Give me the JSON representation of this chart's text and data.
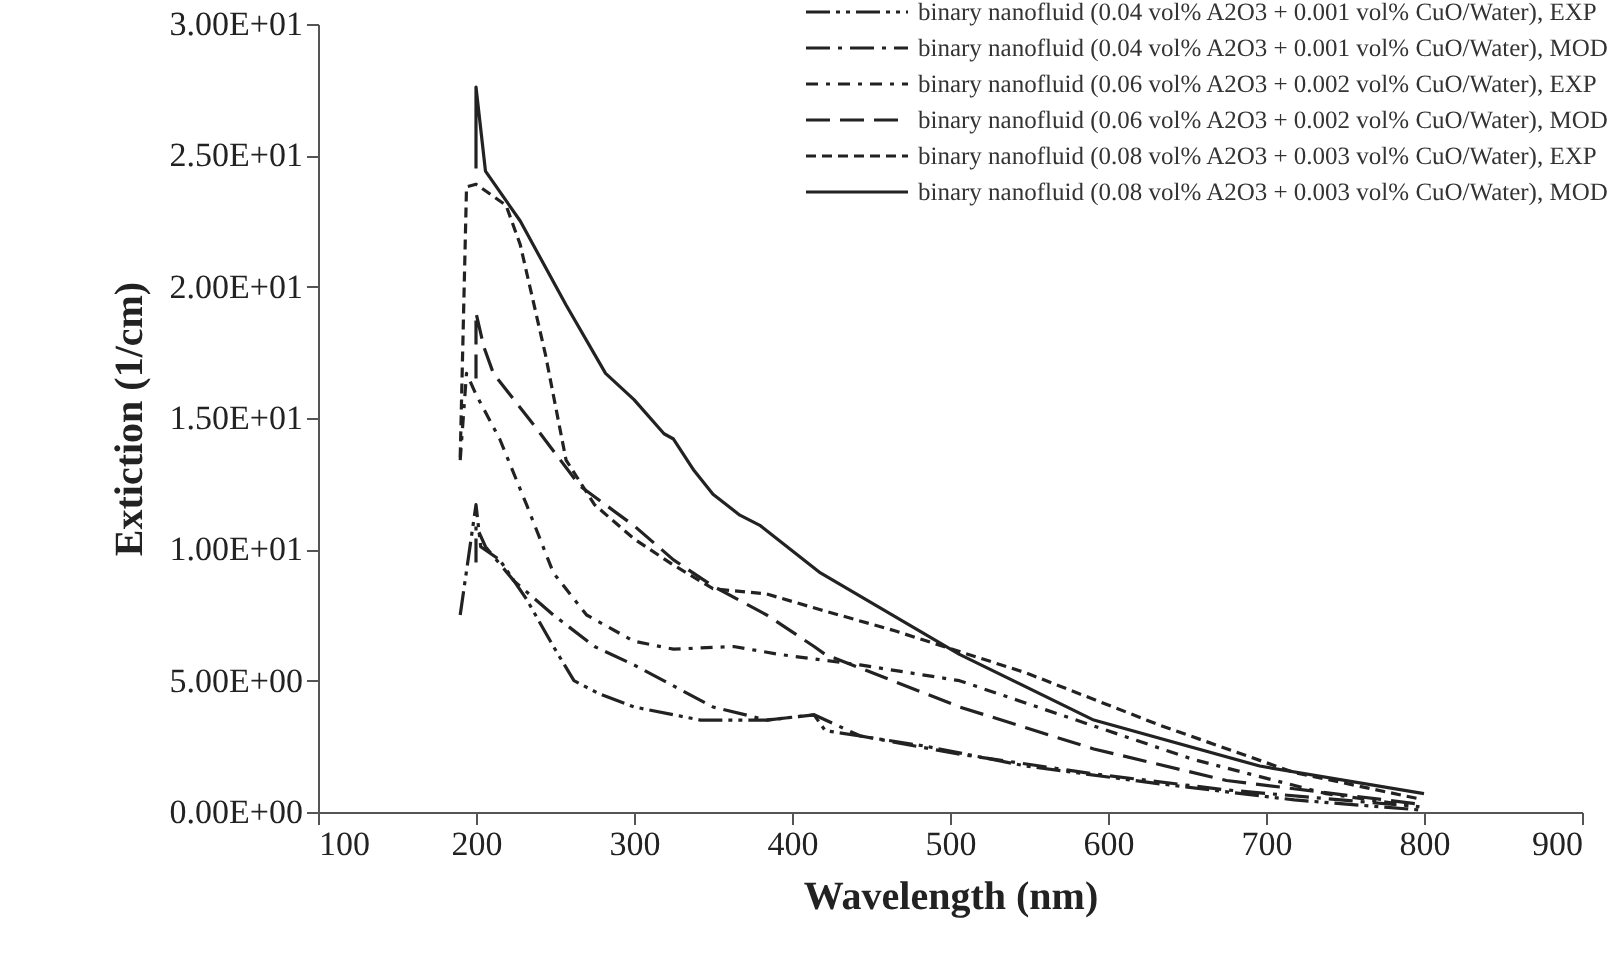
{
  "chart_data": {
    "type": "line",
    "xlabel": "Wavelength (nm)",
    "ylabel": "Extiction (1/cm)",
    "xlim": [
      100,
      900
    ],
    "xticks": [
      100,
      200,
      300,
      400,
      500,
      600,
      700,
      800,
      900
    ],
    "ylim": [
      0,
      30
    ],
    "yticks": [
      {
        "value": 0,
        "label": "0.00E+00"
      },
      {
        "value": 5,
        "label": "5.00E+00"
      },
      {
        "value": 10,
        "label": "1.00E+01"
      },
      {
        "value": 15,
        "label": "1.50E+01"
      },
      {
        "value": 20,
        "label": "2.00E+01"
      },
      {
        "value": 25,
        "label": "2.50E+01"
      },
      {
        "value": 30,
        "label": "3.00E+01"
      }
    ],
    "legend": "top right",
    "grid": false,
    "marker": "none",
    "series": [
      {
        "name": "binary nanofluid (0.04 vol% A2O3 + 0.001 vol% CuO/Water), EXP",
        "color": "#222222",
        "line_style": "dashdotdot",
        "x": [
          190,
          200,
          203,
          215,
          232,
          249,
          262,
          278,
          300,
          342,
          384,
          414,
          421,
          485,
          548,
          633,
          718,
          797
        ],
        "values": [
          7.5,
          11.7,
          10.1,
          9.6,
          8.1,
          6.3,
          5.0,
          4.5,
          4.0,
          3.5,
          3.5,
          3.7,
          3.1,
          2.5,
          1.75,
          1.07,
          0.46,
          0.08
        ]
      },
      {
        "name": "binary nanofluid (0.04 vol% A2O3 + 0.001 vol% CuO/Water), MOD",
        "color": "#222222",
        "line_style": "dashdot",
        "x": [
          200,
          200,
          206,
          224,
          249,
          275,
          300,
          325,
          350,
          384,
          414,
          443,
          506,
          591,
          675,
          797
        ],
        "values": [
          9.5,
          10.9,
          10.1,
          8.8,
          7.5,
          6.3,
          5.6,
          4.8,
          4.0,
          3.5,
          3.7,
          2.9,
          2.2,
          1.45,
          0.84,
          0.2
        ]
      },
      {
        "name": "binary nanofluid (0.06 vol% A2O3 + 0.002 vol% CuO/Water), EXP",
        "color": "#222222",
        "line_style": "dashdot-short",
        "x": [
          190,
          194,
          200,
          215,
          232,
          249,
          270,
          300,
          325,
          363,
          392,
          443,
          506,
          570,
          654,
          738,
          797
        ],
        "values": [
          13.4,
          16.7,
          15.9,
          14.2,
          11.7,
          9.1,
          7.5,
          6.5,
          6.2,
          6.3,
          6.0,
          5.6,
          5.0,
          3.7,
          2.0,
          0.7,
          0.2
        ]
      },
      {
        "name": "binary nanofluid (0.06 vol% A2O3 + 0.002 vol% CuO/Water), MOD",
        "color": "#222222",
        "line_style": "dashed-long",
        "x": [
          200,
          200,
          205,
          211,
          237,
          266,
          300,
          325,
          350,
          384,
          414,
          421,
          506,
          591,
          675,
          797
        ],
        "values": [
          16.5,
          19.0,
          17.7,
          16.7,
          14.7,
          12.4,
          10.9,
          9.6,
          8.6,
          7.5,
          6.3,
          6.0,
          4.0,
          2.4,
          1.2,
          0.3
        ]
      },
      {
        "name": "binary nanofluid (0.08 vol% A2O3 + 0.003 vol% CuO/Water), EXP",
        "color": "#222222",
        "line_style": "dashed",
        "x": [
          190,
          194,
          200,
          219,
          228,
          244,
          257,
          275,
          300,
          325,
          350,
          384,
          418,
          465,
          548,
          633,
          718,
          797
        ],
        "values": [
          13.5,
          23.8,
          23.9,
          23.1,
          21.6,
          17.4,
          13.4,
          11.7,
          10.4,
          9.4,
          8.5,
          8.3,
          7.7,
          6.9,
          5.3,
          3.3,
          1.5,
          0.5
        ]
      },
      {
        "name": "binary nanofluid (0.08 vol% A2O3 + 0.003 vol% CuO/Water), MOD",
        "color": "#222222",
        "line_style": "solid",
        "x": [
          200,
          200,
          206,
          228,
          257,
          282,
          300,
          319,
          325,
          338,
          350,
          367,
          380,
          418,
          506,
          591,
          696,
          800
        ],
        "values": [
          24.5,
          27.6,
          24.4,
          22.5,
          19.3,
          16.7,
          15.7,
          14.4,
          14.2,
          13.0,
          12.1,
          11.3,
          10.9,
          9.1,
          6.0,
          3.5,
          1.75,
          0.7
        ]
      }
    ]
  }
}
